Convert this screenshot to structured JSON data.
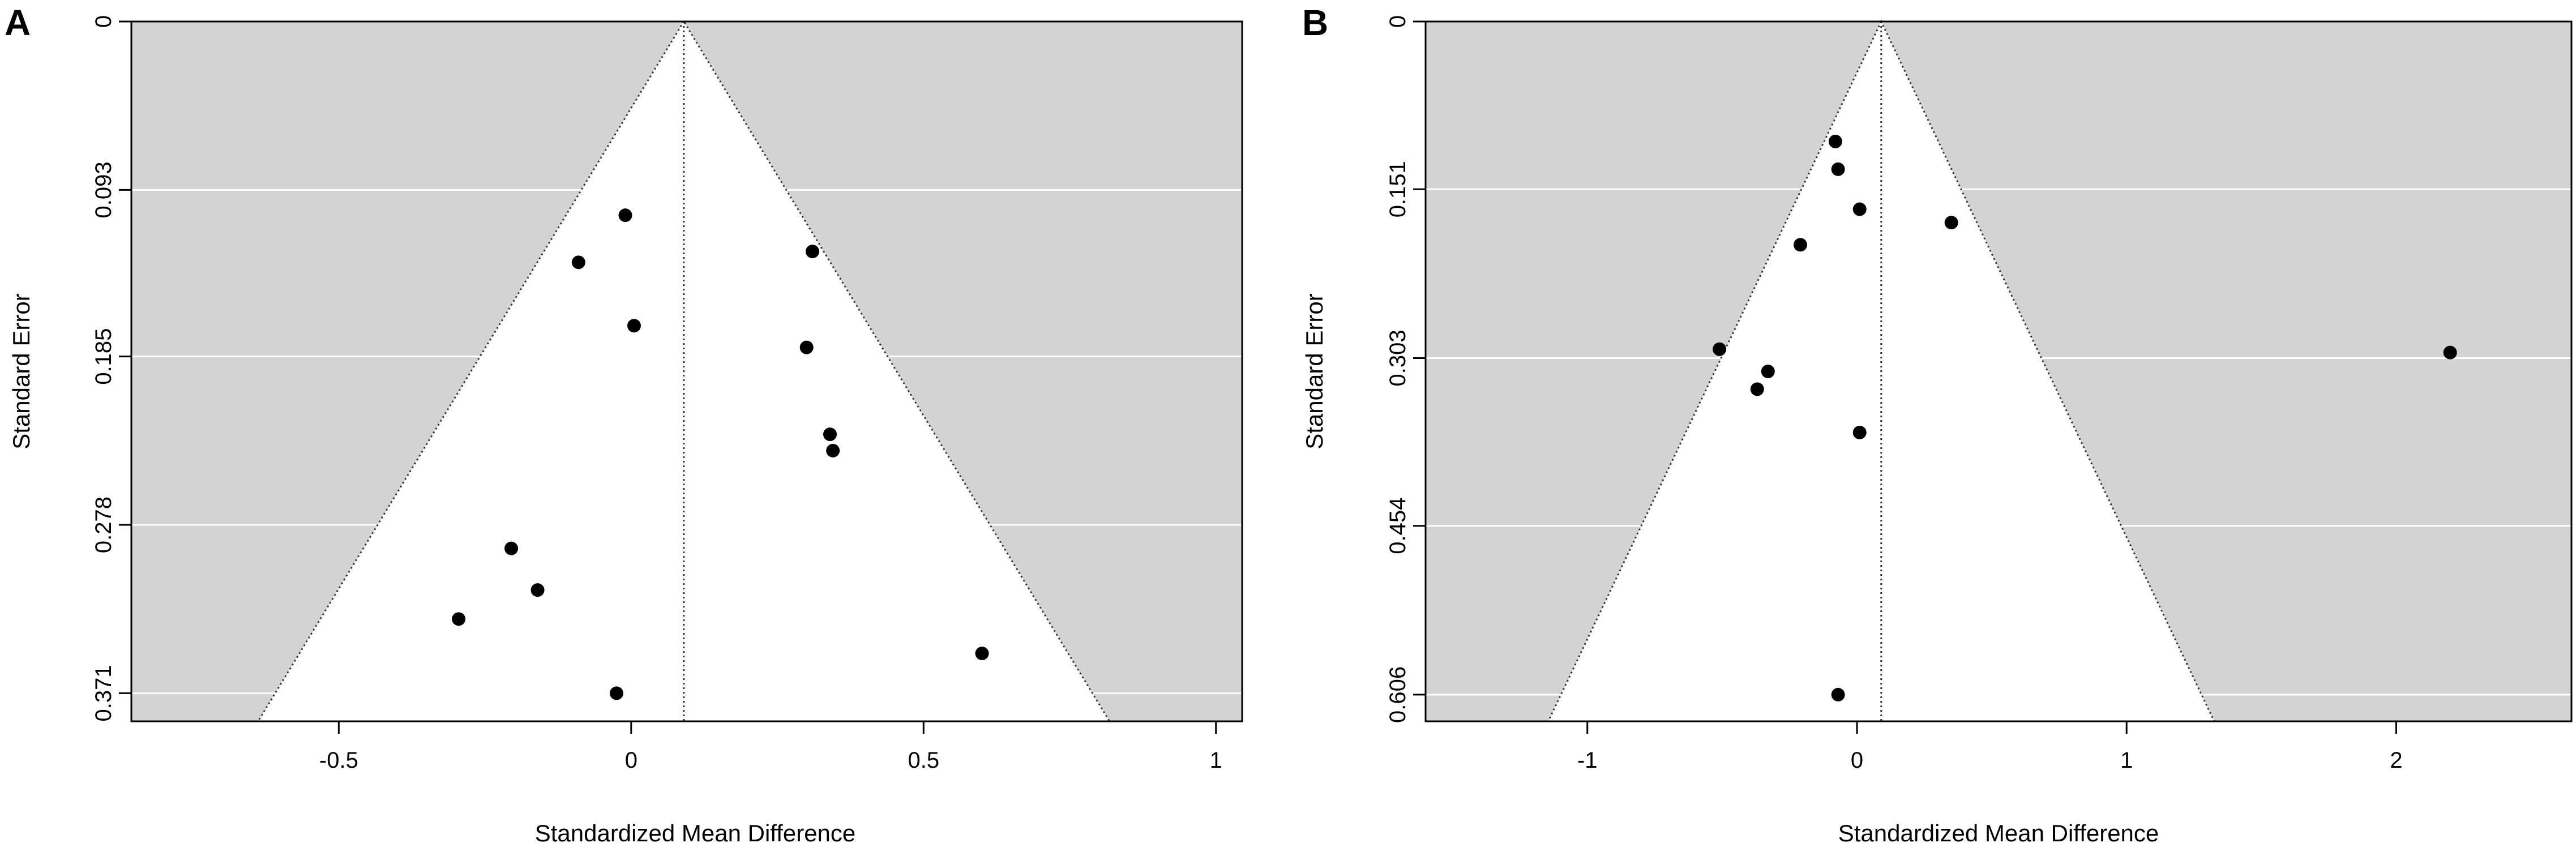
{
  "colors": {
    "shaded_region": "#d3d3d3",
    "funnel_fill": "#ffffff",
    "gridline": "#ffffff",
    "point": "#000000",
    "axis": "#000000"
  },
  "chart_data": [
    {
      "panel_label": "A",
      "type": "scatter",
      "subtype": "funnel-plot",
      "title": "",
      "xlabel": "Standardized Mean Difference",
      "ylabel": "Standard Error",
      "y_inverted": true,
      "xlim": [
        -0.8547,
        1.0448
      ],
      "ylim": [
        0,
        0.3865
      ],
      "x_ticks": [
        -0.5,
        0,
        0.5,
        1
      ],
      "x_tick_labels": [
        "-0.5",
        "0",
        "0.5",
        "1"
      ],
      "y_ticks": [
        0,
        0.093,
        0.185,
        0.278,
        0.371
      ],
      "y_tick_labels": [
        "0",
        "0.093",
        "0.185",
        "0.278",
        "0.371"
      ],
      "summary_estimate": 0.09,
      "funnel_base_x": [
        -0.638,
        0.818
      ],
      "funnel_base_se": 0.3865,
      "grid": true,
      "points": [
        {
          "x": -0.01,
          "y": 0.107
        },
        {
          "x": -0.09,
          "y": 0.133
        },
        {
          "x": 0.31,
          "y": 0.127
        },
        {
          "x": 0.005,
          "y": 0.168
        },
        {
          "x": 0.3,
          "y": 0.18
        },
        {
          "x": 0.34,
          "y": 0.228
        },
        {
          "x": 0.345,
          "y": 0.237
        },
        {
          "x": -0.205,
          "y": 0.291
        },
        {
          "x": -0.16,
          "y": 0.314
        },
        {
          "x": -0.295,
          "y": 0.33
        },
        {
          "x": 0.6,
          "y": 0.349
        },
        {
          "x": -0.025,
          "y": 0.371
        }
      ]
    },
    {
      "panel_label": "B",
      "type": "scatter",
      "subtype": "funnel-plot",
      "title": "",
      "xlabel": "Standardized Mean Difference",
      "ylabel": "Standard Error",
      "y_inverted": true,
      "xlim": [
        -1.6,
        2.65
      ],
      "ylim": [
        0,
        0.63
      ],
      "x_ticks": [
        -1,
        0,
        1,
        2
      ],
      "x_tick_labels": [
        "-1",
        "0",
        "1",
        "2"
      ],
      "y_ticks": [
        0,
        0.151,
        0.303,
        0.454,
        0.606
      ],
      "y_tick_labels": [
        "0",
        "0.151",
        "0.303",
        "0.454",
        "0.606"
      ],
      "summary_estimate": 0.09,
      "funnel_base_x": [
        -1.145,
        1.325
      ],
      "funnel_base_se": 0.63,
      "grid": true,
      "points": [
        {
          "x": -0.08,
          "y": 0.108
        },
        {
          "x": -0.07,
          "y": 0.133
        },
        {
          "x": 0.01,
          "y": 0.169
        },
        {
          "x": 0.35,
          "y": 0.181
        },
        {
          "x": -0.21,
          "y": 0.201
        },
        {
          "x": -0.51,
          "y": 0.295
        },
        {
          "x": -0.33,
          "y": 0.315
        },
        {
          "x": -0.37,
          "y": 0.331
        },
        {
          "x": 2.2,
          "y": 0.298
        },
        {
          "x": 0.01,
          "y": 0.37
        },
        {
          "x": -0.07,
          "y": 0.606
        }
      ]
    }
  ]
}
